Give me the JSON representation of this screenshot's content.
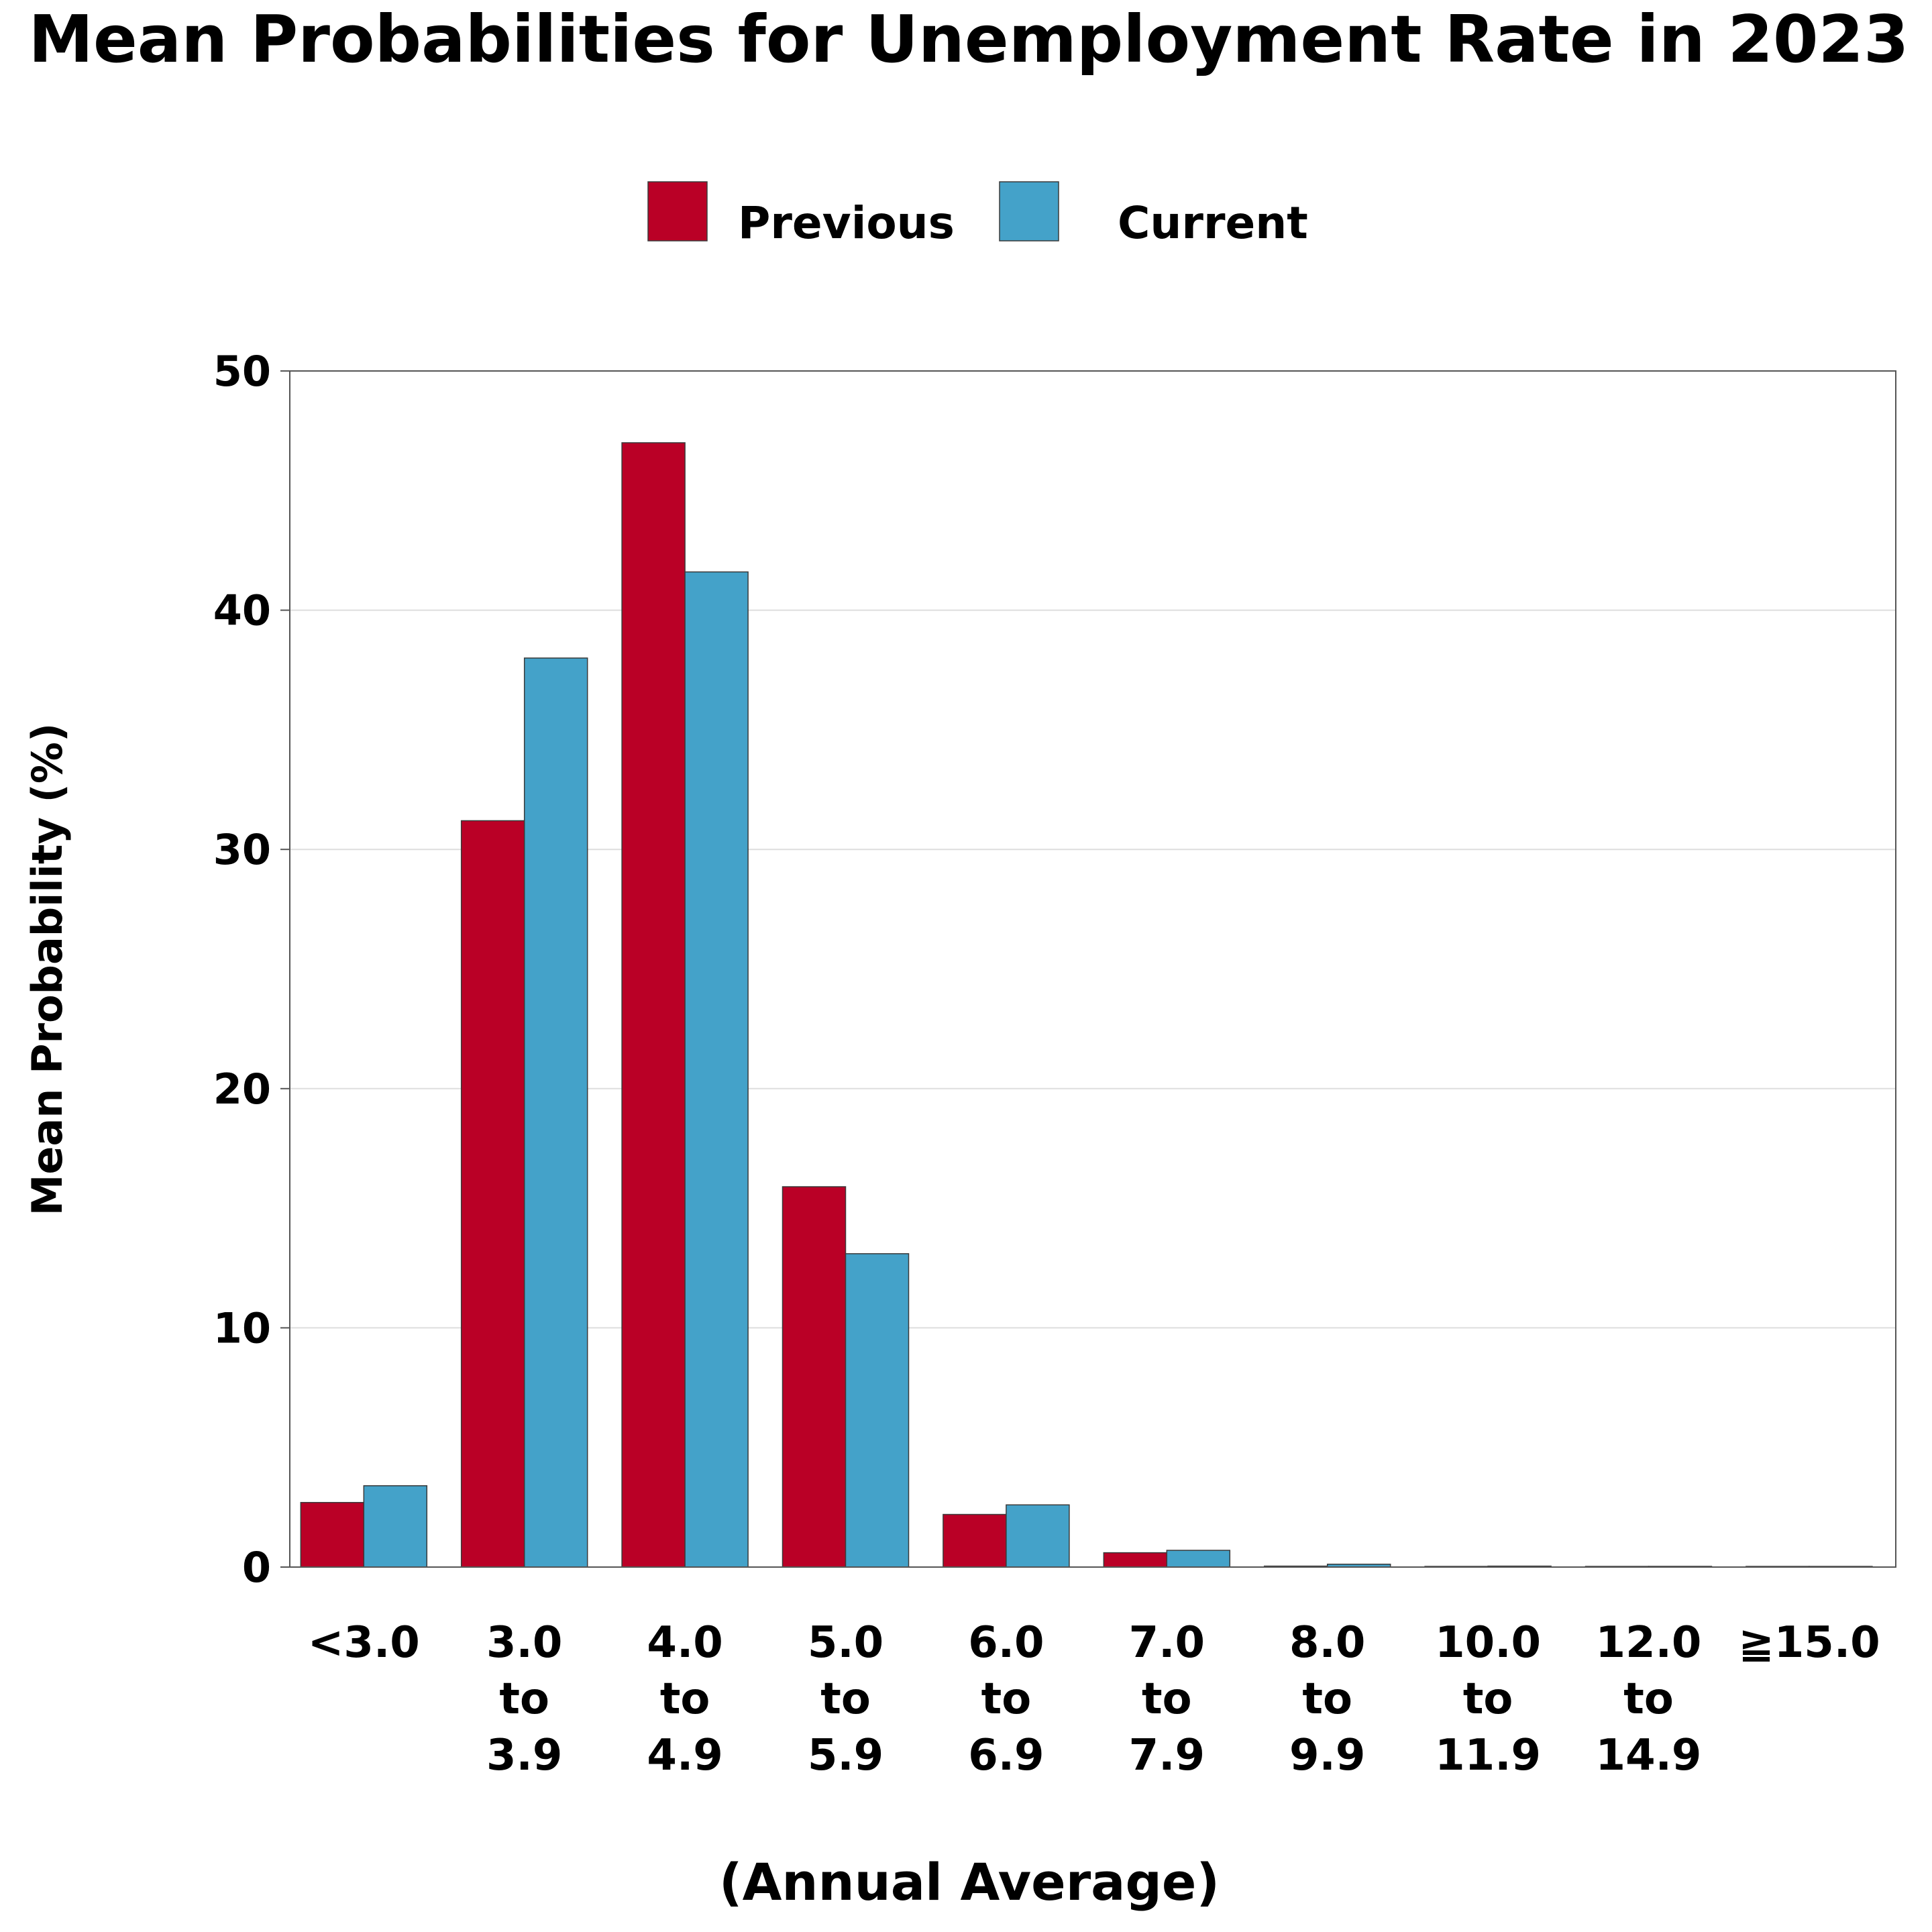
{
  "chart_data": {
    "type": "bar",
    "title": "Mean Probabilities for Unemployment Rate in 2023",
    "xlabel": "(Annual Average)",
    "ylabel": "Mean Probability (%)",
    "ylim": [
      0,
      50
    ],
    "yticks": [
      0,
      10,
      20,
      30,
      40,
      50
    ],
    "grid": true,
    "legend_position": "top-center",
    "categories": [
      [
        "<3.0"
      ],
      [
        "3.0",
        "to",
        "3.9"
      ],
      [
        "4.0",
        "to",
        "4.9"
      ],
      [
        "5.0",
        "to",
        "5.9"
      ],
      [
        "6.0",
        "to",
        "6.9"
      ],
      [
        "7.0",
        "to",
        "7.9"
      ],
      [
        "8.0",
        "to",
        "9.9"
      ],
      [
        "10.0",
        "to",
        "11.9"
      ],
      [
        "12.0",
        "to",
        "14.9"
      ],
      [
        "≧15.0"
      ]
    ],
    "series": [
      {
        "name": "Previous",
        "color": "#ba0026",
        "values": [
          2.7,
          31.2,
          47.0,
          15.9,
          2.2,
          0.6,
          0.04,
          0.02,
          0.01,
          0.01
        ]
      },
      {
        "name": "Current",
        "color": "#44a2c9",
        "values": [
          3.4,
          38.0,
          41.6,
          13.1,
          2.6,
          0.7,
          0.12,
          0.04,
          0.03,
          0.02
        ]
      }
    ]
  }
}
